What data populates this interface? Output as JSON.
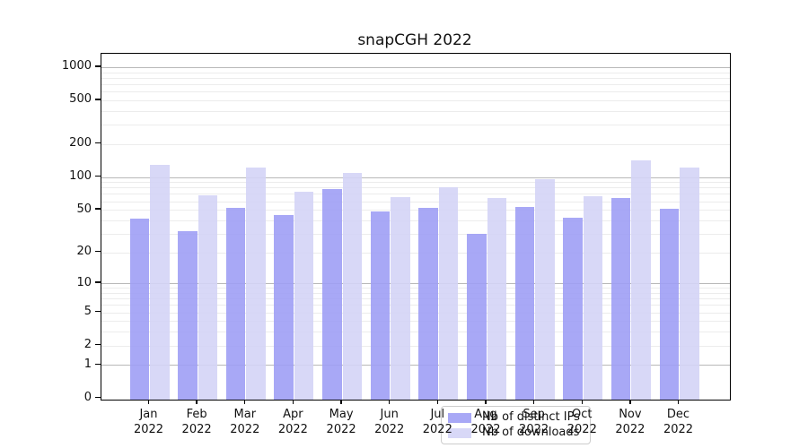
{
  "title": "snapCGH 2022",
  "chart_data": {
    "type": "bar",
    "title": "snapCGH 2022",
    "categories": [
      "Jan",
      "Feb",
      "Mar",
      "Apr",
      "May",
      "Jun",
      "Jul",
      "Aug",
      "Sep",
      "Oct",
      "Nov",
      "Dec"
    ],
    "year": "2022",
    "series": [
      {
        "name": "Nb of distinct IPs",
        "color": "#9f9ff5",
        "values": [
          43,
          33,
          54,
          46,
          80,
          50,
          54,
          31,
          55,
          44,
          66,
          53
        ]
      },
      {
        "name": "Nb of downloads",
        "color": "#d4d4f6",
        "values": [
          134,
          70,
          125,
          76,
          113,
          67,
          84,
          66,
          98,
          69,
          147,
          126
        ]
      }
    ],
    "yscale": "log10(value+1)",
    "yticks": [
      0,
      1,
      2,
      5,
      10,
      20,
      50,
      100,
      200,
      500,
      1000
    ],
    "ylim": [
      0,
      1320
    ],
    "grid": true,
    "grid_minor_steps": [
      2,
      3,
      4,
      5,
      6,
      7,
      8,
      9
    ],
    "grid_major_values": [
      1,
      10,
      100,
      1000
    ],
    "legend_position": "lower center",
    "xlabel": "",
    "ylabel": ""
  },
  "colors": {
    "grid_minor": "#ececec",
    "grid_major": "#b9b9b9",
    "axis": "#000000",
    "legend_border": "#cccccc"
  }
}
